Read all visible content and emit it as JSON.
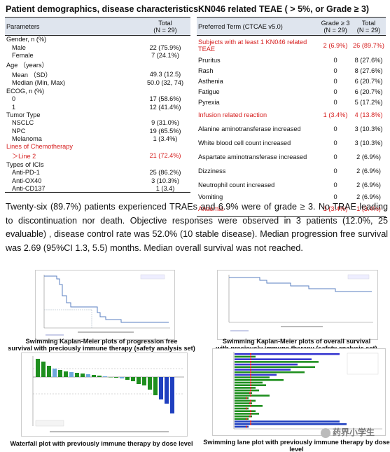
{
  "left": {
    "title": "Patient demographics, disease characteristics",
    "header": {
      "col1": "Parameters",
      "col2_line1": "Total",
      "col2_line2": "(N = 29)"
    },
    "rows": [
      {
        "label": "Gender,  n (%)",
        "value": "",
        "indent": false,
        "red": false
      },
      {
        "label": "Male",
        "value": "22 (75.9%)",
        "indent": true,
        "red": false
      },
      {
        "label": "Female",
        "value": "7 (24.1%)",
        "indent": true,
        "red": false
      },
      {
        "label": "Age （years）",
        "value": "",
        "indent": false,
        "red": false
      },
      {
        "label": "Mean （SD）",
        "value": "49.3 (12.5)",
        "indent": true,
        "red": false
      },
      {
        "label": "Median (Min, Max)",
        "value": "50.0 (32, 74)",
        "indent": true,
        "red": false
      },
      {
        "label": "ECOG, n (%)",
        "value": "",
        "indent": false,
        "red": false
      },
      {
        "label": "0",
        "value": "17 (58.6%)",
        "indent": true,
        "red": false
      },
      {
        "label": "1",
        "value": "12 (41.4%)",
        "indent": true,
        "red": false
      },
      {
        "label": "Tumor Type",
        "value": "",
        "indent": false,
        "red": false
      },
      {
        "label": "NSCLC",
        "value": "9 (31.0%)",
        "indent": true,
        "red": false
      },
      {
        "label": "NPC",
        "value": "19 (65.5%)",
        "indent": true,
        "red": false
      },
      {
        "label": "Melanoma",
        "value": "1 (3.4%)",
        "indent": true,
        "red": false
      },
      {
        "label": "Lines of Chemotherapy",
        "value": "",
        "indent": false,
        "red": true
      },
      {
        "label": "＞Line 2",
        "value": "21 (72.4%)",
        "indent": true,
        "red": true
      },
      {
        "label": "Types of ICIs",
        "value": "",
        "indent": false,
        "red": false
      },
      {
        "label": "Anti-PD-1",
        "value": "25 (86.2%)",
        "indent": true,
        "red": false
      },
      {
        "label": "Anti-OX40",
        "value": "3 (10.3%)",
        "indent": true,
        "red": false
      },
      {
        "label": "Anti-CD137",
        "value": "1 (3.4)",
        "indent": true,
        "red": false
      }
    ]
  },
  "right": {
    "title": "KN046 related TEAE ( > 5%, or Grade ≥ 3)",
    "header": {
      "col1": "Preferred Term (CTCAE v5.0)",
      "col2_line1": "Grade ≥ 3",
      "col2_line2": "(N = 29)",
      "col3_line1": "Total",
      "col3_line2": "(N = 29)"
    },
    "rows": [
      {
        "term": "Subjects with at least 1 KN046 related TEAE",
        "g3": "2 (6.9%)",
        "total": "26 (89.7%)",
        "red": true,
        "size": "r1"
      },
      {
        "term": "Pruritus",
        "g3": "0",
        "total": "8 (27.6%)",
        "red": false,
        "size": "r2"
      },
      {
        "term": "Rash",
        "g3": "0",
        "total": "8 (27.6%)",
        "red": false,
        "size": "r2"
      },
      {
        "term": "Asthenia",
        "g3": "0",
        "total": "6 (20.7%)",
        "red": false,
        "size": "r2"
      },
      {
        "term": "Fatigue",
        "g3": "0",
        "total": "6 (20.7%)",
        "red": false,
        "size": "r2"
      },
      {
        "term": "Pyrexia",
        "g3": "0",
        "total": "5 (17.2%)",
        "red": false,
        "size": "r2"
      },
      {
        "term": "Infusion related reaction",
        "g3": "1 (3.4%)",
        "total": "4 (13.8%)",
        "red": true,
        "size": "r3"
      },
      {
        "term": "Alanine aminotransferase increased",
        "g3": "0",
        "total": "3 (10.3%)",
        "red": false,
        "size": "r3"
      },
      {
        "term": "White blood cell count increased",
        "g3": "0",
        "total": "3 (10.3%)",
        "red": false,
        "size": "r3"
      },
      {
        "term": "Aspartate aminotransferase increased",
        "g3": "0",
        "total": "2 (6.9%)",
        "red": false,
        "size": "r3"
      },
      {
        "term": "Dizziness",
        "g3": "0",
        "total": "2 (6.9%)",
        "red": false,
        "size": "r3"
      },
      {
        "term": "Neutrophil count increased",
        "g3": "0",
        "total": "2 (6.9%)",
        "red": false,
        "size": "r3"
      },
      {
        "term": "Vomiting",
        "g3": "0",
        "total": "2 (6.9%)",
        "red": false,
        "size": "r2"
      },
      {
        "term": "Anaemia",
        "g3": "1 (3.4%)",
        "total": "1 (3.4%)",
        "red": true,
        "size": "r3"
      }
    ]
  },
  "summary": "Twenty-six (89.7%) patients experienced TRAEs and 6.9% were of grade ≥ 3. No TRAE leading to discontinuation nor death. Objective responses were observed in 3 patients (12.0%, 25 evaluable) , disease control rate was 52.0% (10 stable disease). Median progression free survival was 2.69 (95%CI 1.3, 5.5) months. Median overall survival was not reached.",
  "figures": {
    "pfs_caption_line1": "Swimming Kaplan-Meier plots of progression free",
    "pfs_caption_line2": "survival with preciously immune therapy (safety analysis set)",
    "os_caption_line1": "Swimming Kaplan-Meier plots of overall survival",
    "os_caption_line2": "with preciously immune therapy (safety analysis set)",
    "waterfall_caption": "Waterfall plot with previously immune therapy by dose level",
    "swim_caption": "Swimming lane plot with previously immune therapy by dose level"
  },
  "watermark": "药界小学生",
  "colors": {
    "red": "#d62020",
    "header_bg": "#dfe5ee",
    "dose_3": "#1f3fbf",
    "dose_1": "#1f8f1f",
    "dose_5": "#3a3ad0",
    "dose_mg": "#6fa8dc"
  }
}
